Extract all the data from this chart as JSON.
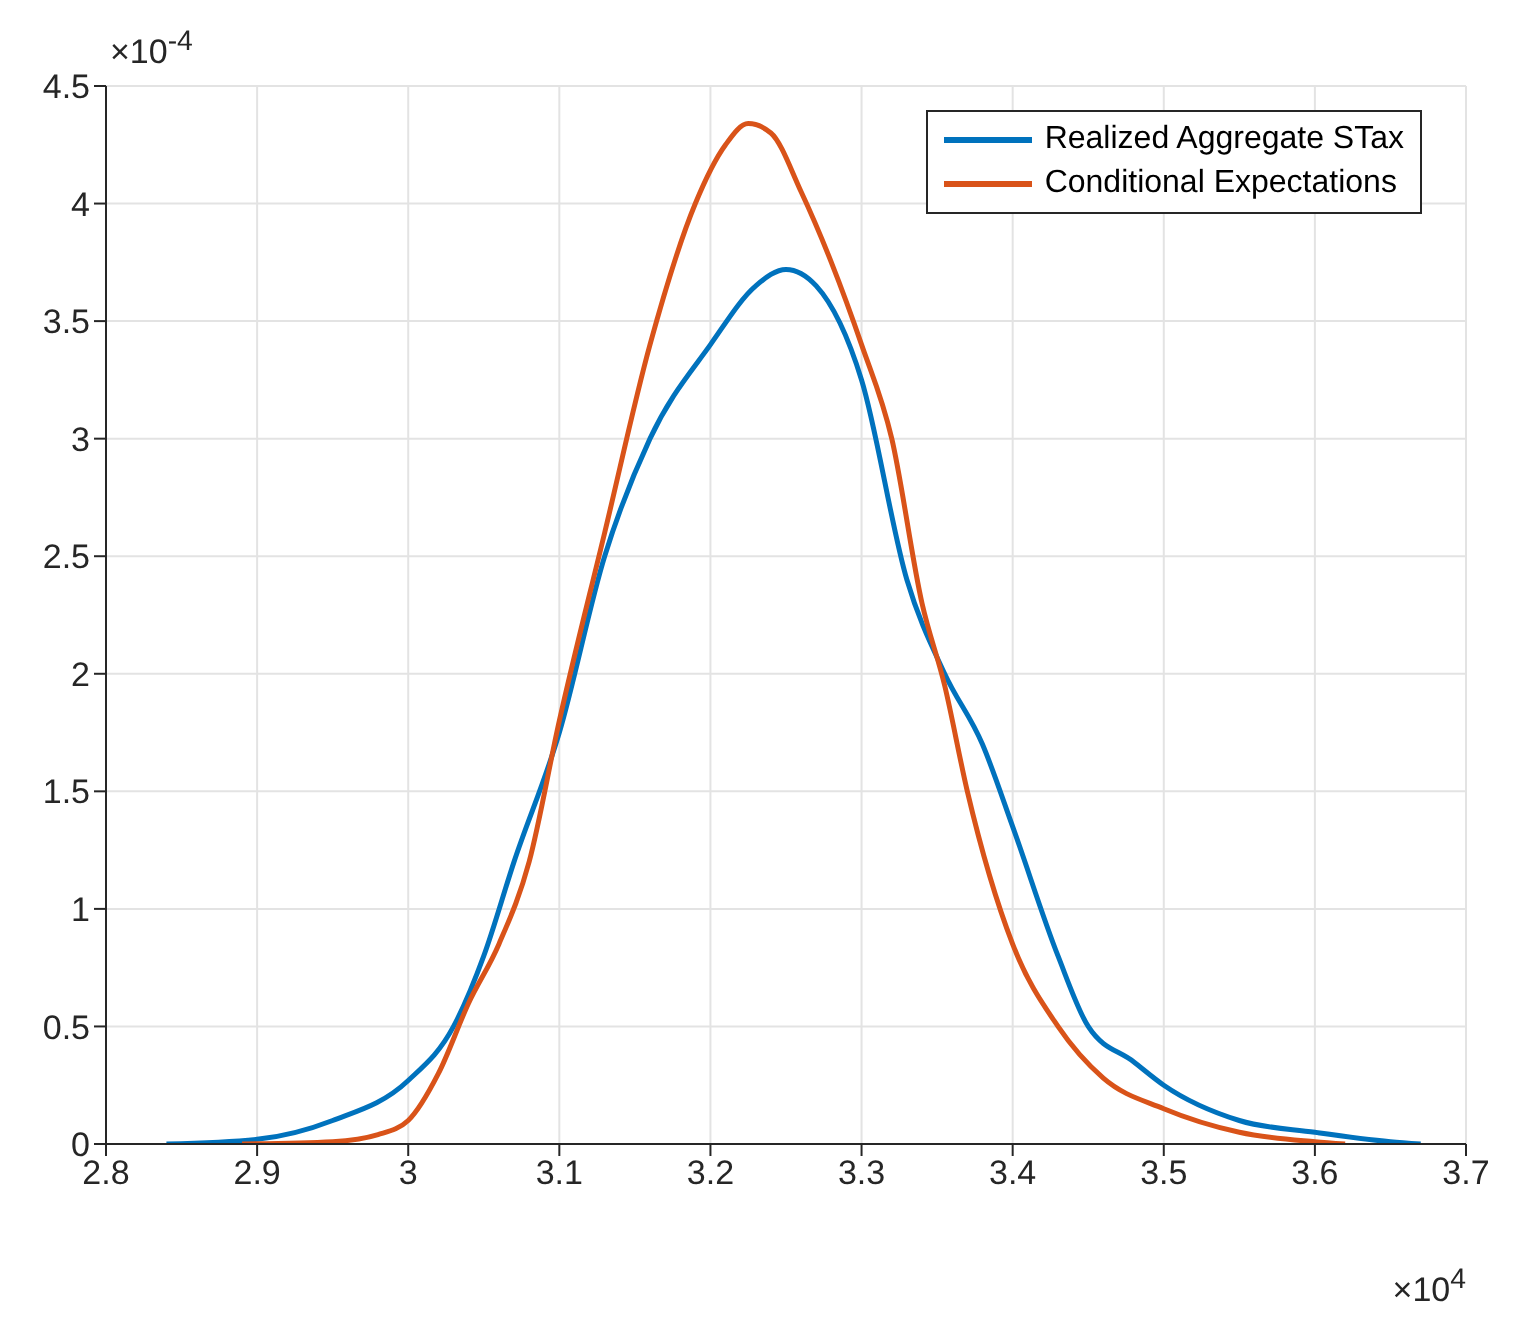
{
  "chart_data": {
    "type": "line",
    "annotations": [
      "×10$^{-4}$",
      "×10$^{4}$"
    ],
    "xlim": [
      2.8,
      3.7
    ],
    "xticks": [
      2.8,
      2.9,
      3,
      3.1,
      3.2,
      3.3,
      3.4,
      3.5,
      3.6,
      3.7
    ],
    "ylim": [
      0,
      4.5
    ],
    "yticks": [
      0,
      0.5,
      1,
      1.5,
      2,
      2.5,
      3,
      3.5,
      4,
      4.5
    ],
    "grid": true,
    "legend": "top right",
    "marker": "none",
    "line_style": "solid",
    "series": [
      {
        "name": "Realized Aggregate STax",
        "color": "#0072bd",
        "x": [
          2.84,
          2.9,
          2.95,
          3.0,
          3.03,
          3.05,
          3.07,
          3.1,
          3.13,
          3.16,
          3.2,
          3.23,
          3.25,
          3.27,
          3.3,
          3.33,
          3.355,
          3.38,
          3.4,
          3.43,
          3.45,
          3.48,
          3.5,
          3.55,
          3.6,
          3.65,
          3.67
        ],
        "values": [
          0,
          0.02,
          0.1,
          0.27,
          0.5,
          0.8,
          1.2,
          1.75,
          2.5,
          3.0,
          3.4,
          3.65,
          3.72,
          3.65,
          3.25,
          2.4,
          2.0,
          1.7,
          1.35,
          0.8,
          0.5,
          0.35,
          0.25,
          0.1,
          0.05,
          0.01,
          0
        ]
      },
      {
        "name": "Conditional Expectations",
        "color": "#d95319",
        "x": [
          2.89,
          2.95,
          2.98,
          3.0,
          3.02,
          3.04,
          3.06,
          3.08,
          3.1,
          3.13,
          3.16,
          3.19,
          3.21,
          3.225,
          3.24,
          3.26,
          3.28,
          3.3,
          3.32,
          3.34,
          3.355,
          3.37,
          3.4,
          3.43,
          3.46,
          3.5,
          3.55,
          3.6,
          3.62
        ],
        "values": [
          0,
          0.01,
          0.04,
          0.1,
          0.3,
          0.6,
          0.85,
          1.2,
          1.8,
          2.6,
          3.4,
          4.0,
          4.25,
          4.34,
          4.3,
          4.05,
          3.75,
          3.4,
          3.0,
          2.3,
          1.95,
          1.5,
          0.85,
          0.5,
          0.28,
          0.15,
          0.05,
          0.01,
          0
        ]
      }
    ]
  }
}
